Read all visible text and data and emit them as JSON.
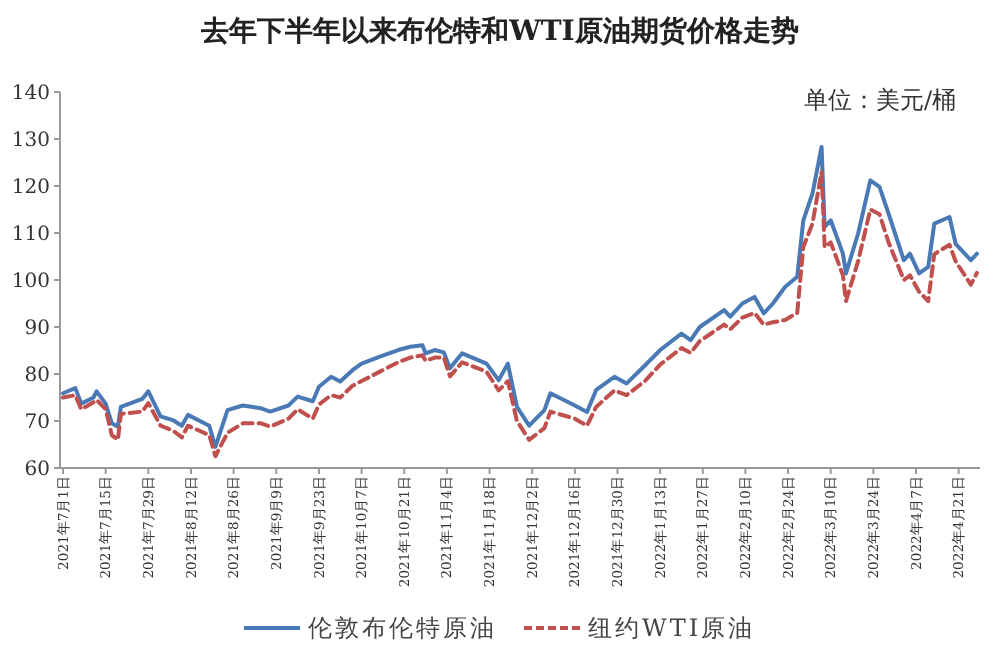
{
  "chart_data": {
    "type": "line",
    "title": "去年下半年以来布伦特和WTI原油期货价格走势",
    "annotations": [
      "单位：美元/桶"
    ],
    "legend": "bottom",
    "marker": "none",
    "x": [
      "2021-07-01",
      "2021-07-05",
      "2021-07-07",
      "2021-07-11",
      "2021-07-12",
      "2021-07-15",
      "2021-07-17",
      "2021-07-19",
      "2021-07-20",
      "2021-07-27",
      "2021-07-29",
      "2021-08-02",
      "2021-08-06",
      "2021-08-09",
      "2021-08-11",
      "2021-08-18",
      "2021-08-20",
      "2021-08-24",
      "2021-08-29",
      "2021-09-04",
      "2021-09-07",
      "2021-09-13",
      "2021-09-16",
      "2021-09-21",
      "2021-09-23",
      "2021-09-27",
      "2021-09-30",
      "2021-10-04",
      "2021-10-07",
      "2021-10-13",
      "2021-10-19",
      "2021-10-23",
      "2021-10-27",
      "2021-10-28",
      "2021-10-31",
      "2021-11-03",
      "2021-11-05",
      "2021-11-09",
      "2021-11-17",
      "2021-11-21",
      "2021-11-24",
      "2021-11-27",
      "2021-12-01",
      "2021-12-06",
      "2021-12-08",
      "2021-12-16",
      "2021-12-20",
      "2021-12-23",
      "2021-12-29",
      "2022-01-02",
      "2022-01-08",
      "2022-01-13",
      "2022-01-20",
      "2022-01-23",
      "2022-01-26",
      "2022-02-03",
      "2022-02-05",
      "2022-02-09",
      "2022-02-13",
      "2022-02-16",
      "2022-02-19",
      "2022-02-23",
      "2022-02-27",
      "2022-03-01",
      "2022-03-04",
      "2022-03-07",
      "2022-03-08",
      "2022-03-10",
      "2022-03-14",
      "2022-03-15",
      "2022-03-19",
      "2022-03-23",
      "2022-03-26",
      "2022-03-29",
      "2022-04-03",
      "2022-04-05",
      "2022-04-08",
      "2022-04-11",
      "2022-04-13",
      "2022-04-18",
      "2022-04-20",
      "2022-04-25",
      "2022-04-27"
    ],
    "series": [
      {
        "name": "伦敦布伦特原油",
        "color": "#4a7ab5",
        "line_style": "solid",
        "values": [
          75.9,
          77,
          73.7,
          75,
          76.3,
          73.7,
          69.5,
          68.8,
          73,
          74.7,
          76.3,
          71,
          70.2,
          69,
          71.3,
          69,
          64.5,
          72.3,
          73.3,
          72.7,
          72,
          73.3,
          75.2,
          74.2,
          77.3,
          79.4,
          78.4,
          80.8,
          82.2,
          83.7,
          85.1,
          85.8,
          86.1,
          84.4,
          85.1,
          84.6,
          81.2,
          84.4,
          82.2,
          78.7,
          82.2,
          73,
          69,
          72.3,
          75.9,
          73.3,
          71.9,
          76.6,
          79.4,
          78,
          81.8,
          85.1,
          88.6,
          87.2,
          90,
          93.6,
          92.2,
          95,
          96.4,
          92.9,
          95,
          98.5,
          100.7,
          112.7,
          118.4,
          128.3,
          111.3,
          112.7,
          105.6,
          101.4,
          109.9,
          121.2,
          119.8,
          114.1,
          104.2,
          105.6,
          101.4,
          102.8,
          112,
          113.4,
          107.7,
          104.2,
          105.6
        ]
      },
      {
        "name": "纽约WTI原油",
        "color": "#c0504d",
        "line_style": "dashed",
        "values": [
          75,
          75.5,
          72.5,
          74,
          74.5,
          72.5,
          67,
          66,
          71.5,
          72,
          73.8,
          69,
          68,
          66.5,
          69,
          67,
          62.5,
          67.5,
          69.5,
          69.5,
          68.8,
          70.5,
          72.5,
          70.5,
          73.5,
          75.5,
          75,
          77.5,
          78.5,
          80.5,
          82.5,
          83.5,
          84,
          82.8,
          83.5,
          83.5,
          79.5,
          82.5,
          80.5,
          76.5,
          78.5,
          70,
          66,
          68.5,
          72,
          70.5,
          69,
          73,
          76.5,
          75.5,
          78.5,
          82,
          85.5,
          84.5,
          87,
          90.5,
          89.5,
          92,
          93,
          90.5,
          91,
          91.5,
          93,
          107,
          112,
          123,
          107,
          108,
          101,
          95.5,
          104,
          115,
          114,
          108,
          100,
          101,
          97.5,
          95.5,
          105.5,
          107.5,
          104,
          99,
          101.5
        ]
      }
    ],
    "xlim": [
      "2021-06-30",
      "2022-04-28"
    ],
    "xticks": [
      {
        "value": "2021-07-01",
        "label": "2021年7月1日"
      },
      {
        "value": "2021-07-15",
        "label": "2021年7月15日"
      },
      {
        "value": "2021-07-29",
        "label": "2021年7月29日"
      },
      {
        "value": "2021-08-12",
        "label": "2021年8月12日"
      },
      {
        "value": "2021-08-26",
        "label": "2021年8月26日"
      },
      {
        "value": "2021-09-09",
        "label": "2021年9月9日"
      },
      {
        "value": "2021-09-23",
        "label": "2021年9月23日"
      },
      {
        "value": "2021-10-07",
        "label": "2021年10月7日"
      },
      {
        "value": "2021-10-21",
        "label": "2021年10月21日"
      },
      {
        "value": "2021-11-04",
        "label": "2021年11月4日"
      },
      {
        "value": "2021-11-18",
        "label": "2021年11月18日"
      },
      {
        "value": "2021-12-02",
        "label": "2021年12月2日"
      },
      {
        "value": "2021-12-16",
        "label": "2021年12月16日"
      },
      {
        "value": "2021-12-30",
        "label": "2021年12月30日"
      },
      {
        "value": "2022-01-13",
        "label": "2022年1月13日"
      },
      {
        "value": "2022-01-27",
        "label": "2022年1月27日"
      },
      {
        "value": "2022-02-10",
        "label": "2022年2月10日"
      },
      {
        "value": "2022-02-24",
        "label": "2022年2月24日"
      },
      {
        "value": "2022-03-10",
        "label": "2022年3月10日"
      },
      {
        "value": "2022-03-24",
        "label": "2022年3月24日"
      },
      {
        "value": "2022-04-07",
        "label": "2022年4月7日"
      },
      {
        "value": "2022-04-21",
        "label": "2022年4月21日"
      }
    ],
    "ylim": [
      60,
      140
    ],
    "yticks": [
      60,
      70,
      80,
      90,
      100,
      110,
      120,
      130,
      140
    ]
  }
}
